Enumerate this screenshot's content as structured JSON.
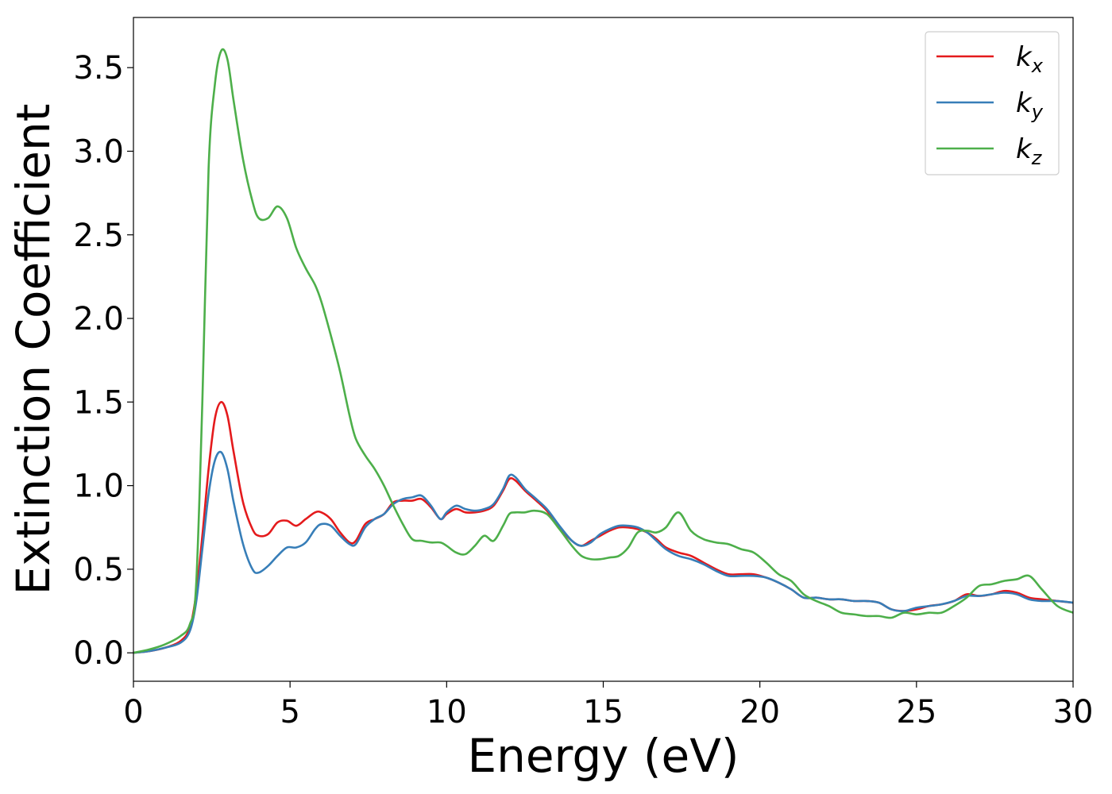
{
  "chart_data": {
    "type": "line",
    "xlabel": "Energy (eV)",
    "ylabel": "Extinction Coefficient",
    "xlim": [
      0,
      30
    ],
    "ylim": [
      -0.17,
      3.8
    ],
    "xticks": [
      0,
      5,
      10,
      15,
      20,
      25,
      30
    ],
    "xtick_labels": [
      "0",
      "5",
      "10",
      "15",
      "20",
      "25",
      "30"
    ],
    "yticks": [
      0.0,
      0.5,
      1.0,
      1.5,
      2.0,
      2.5,
      3.0,
      3.5
    ],
    "ytick_labels": [
      "0.0",
      "0.5",
      "1.0",
      "1.5",
      "2.0",
      "2.5",
      "3.0",
      "3.5"
    ],
    "grid": false,
    "legend_position": "top-right",
    "series": [
      {
        "name": "k_x",
        "legend_base": "k",
        "legend_sub": "x",
        "color": "#e41a1c",
        "x": [
          0,
          0.5,
          1.0,
          1.5,
          1.8,
          2.0,
          2.2,
          2.4,
          2.6,
          2.8,
          3.0,
          3.2,
          3.5,
          3.8,
          4.0,
          4.3,
          4.6,
          4.9,
          5.2,
          5.5,
          5.8,
          6.0,
          6.3,
          6.6,
          6.9,
          7.1,
          7.4,
          7.7,
          8.0,
          8.3,
          8.6,
          8.9,
          9.2,
          9.5,
          9.8,
          10.0,
          10.3,
          10.6,
          10.9,
          11.2,
          11.5,
          11.8,
          12.0,
          12.2,
          12.5,
          12.8,
          13.2,
          13.6,
          14.0,
          14.3,
          14.6,
          14.9,
          15.2,
          15.5,
          15.8,
          16.1,
          16.4,
          16.7,
          17.0,
          17.4,
          17.8,
          18.2,
          18.6,
          19.0,
          19.4,
          19.8,
          20.2,
          20.6,
          21.0,
          21.4,
          21.8,
          22.2,
          22.6,
          23.0,
          23.4,
          23.8,
          24.2,
          24.6,
          25.0,
          25.4,
          25.8,
          26.2,
          26.6,
          27.0,
          27.4,
          27.8,
          28.2,
          28.6,
          29.0,
          29.5,
          30.0
        ],
        "y": [
          0.0,
          0.01,
          0.03,
          0.07,
          0.15,
          0.35,
          0.7,
          1.1,
          1.4,
          1.5,
          1.42,
          1.2,
          0.9,
          0.74,
          0.7,
          0.71,
          0.78,
          0.79,
          0.76,
          0.8,
          0.84,
          0.84,
          0.8,
          0.72,
          0.66,
          0.67,
          0.77,
          0.8,
          0.83,
          0.9,
          0.91,
          0.91,
          0.92,
          0.87,
          0.8,
          0.83,
          0.86,
          0.84,
          0.84,
          0.85,
          0.88,
          0.97,
          1.04,
          1.03,
          0.97,
          0.92,
          0.85,
          0.75,
          0.67,
          0.64,
          0.67,
          0.7,
          0.73,
          0.75,
          0.75,
          0.74,
          0.72,
          0.68,
          0.63,
          0.6,
          0.58,
          0.54,
          0.5,
          0.47,
          0.47,
          0.47,
          0.45,
          0.42,
          0.38,
          0.33,
          0.33,
          0.32,
          0.32,
          0.31,
          0.31,
          0.3,
          0.26,
          0.25,
          0.26,
          0.28,
          0.29,
          0.31,
          0.35,
          0.34,
          0.35,
          0.37,
          0.36,
          0.33,
          0.32,
          0.31,
          0.3
        ]
      },
      {
        "name": "k_y",
        "legend_base": "k",
        "legend_sub": "y",
        "color": "#377eb8",
        "x": [
          0,
          0.5,
          1.0,
          1.5,
          1.8,
          2.0,
          2.2,
          2.4,
          2.6,
          2.8,
          3.0,
          3.2,
          3.5,
          3.8,
          4.0,
          4.3,
          4.6,
          4.9,
          5.2,
          5.5,
          5.8,
          6.0,
          6.3,
          6.6,
          6.9,
          7.1,
          7.4,
          7.7,
          8.0,
          8.3,
          8.6,
          8.9,
          9.2,
          9.5,
          9.8,
          10.0,
          10.3,
          10.6,
          10.9,
          11.2,
          11.5,
          11.8,
          12.0,
          12.2,
          12.5,
          12.8,
          13.2,
          13.6,
          14.0,
          14.3,
          14.6,
          14.9,
          15.2,
          15.5,
          15.8,
          16.1,
          16.4,
          16.7,
          17.0,
          17.4,
          17.8,
          18.2,
          18.6,
          19.0,
          19.4,
          19.8,
          20.2,
          20.6,
          21.0,
          21.4,
          21.8,
          22.2,
          22.6,
          23.0,
          23.4,
          23.8,
          24.2,
          24.6,
          25.0,
          25.4,
          25.8,
          26.2,
          26.6,
          27.0,
          27.4,
          27.8,
          28.2,
          28.6,
          29.0,
          29.5,
          30.0
        ],
        "y": [
          0.0,
          0.01,
          0.03,
          0.06,
          0.13,
          0.3,
          0.62,
          0.95,
          1.15,
          1.2,
          1.1,
          0.9,
          0.65,
          0.5,
          0.48,
          0.52,
          0.58,
          0.63,
          0.63,
          0.66,
          0.74,
          0.77,
          0.76,
          0.7,
          0.65,
          0.65,
          0.75,
          0.8,
          0.83,
          0.89,
          0.92,
          0.93,
          0.94,
          0.88,
          0.8,
          0.84,
          0.88,
          0.86,
          0.85,
          0.86,
          0.89,
          0.98,
          1.06,
          1.05,
          0.98,
          0.93,
          0.86,
          0.76,
          0.67,
          0.64,
          0.66,
          0.71,
          0.74,
          0.76,
          0.76,
          0.75,
          0.72,
          0.67,
          0.62,
          0.58,
          0.56,
          0.53,
          0.49,
          0.46,
          0.46,
          0.46,
          0.45,
          0.42,
          0.38,
          0.33,
          0.33,
          0.32,
          0.32,
          0.31,
          0.31,
          0.3,
          0.26,
          0.25,
          0.27,
          0.28,
          0.29,
          0.31,
          0.34,
          0.34,
          0.35,
          0.36,
          0.35,
          0.32,
          0.31,
          0.31,
          0.3
        ]
      },
      {
        "name": "k_z",
        "legend_base": "k",
        "legend_sub": "z",
        "color": "#4daf4a",
        "x": [
          0,
          0.5,
          1.0,
          1.5,
          1.8,
          2.0,
          2.2,
          2.4,
          2.6,
          2.8,
          3.0,
          3.2,
          3.5,
          3.8,
          4.0,
          4.3,
          4.6,
          4.9,
          5.2,
          5.5,
          5.8,
          6.0,
          6.3,
          6.6,
          6.9,
          7.1,
          7.4,
          7.7,
          8.0,
          8.3,
          8.6,
          8.9,
          9.2,
          9.5,
          9.8,
          10.0,
          10.3,
          10.6,
          10.9,
          11.2,
          11.5,
          11.8,
          12.0,
          12.2,
          12.5,
          12.8,
          13.2,
          13.6,
          14.0,
          14.3,
          14.6,
          14.9,
          15.2,
          15.5,
          15.8,
          16.1,
          16.4,
          16.7,
          17.0,
          17.4,
          17.8,
          18.2,
          18.6,
          19.0,
          19.4,
          19.8,
          20.2,
          20.6,
          21.0,
          21.4,
          21.8,
          22.2,
          22.6,
          23.0,
          23.4,
          23.8,
          24.2,
          24.6,
          25.0,
          25.4,
          25.8,
          26.2,
          26.6,
          27.0,
          27.4,
          27.8,
          28.2,
          28.6,
          29.0,
          29.5,
          30.0
        ],
        "y": [
          0.0,
          0.02,
          0.05,
          0.1,
          0.17,
          0.4,
          1.5,
          2.9,
          3.4,
          3.6,
          3.55,
          3.3,
          2.95,
          2.7,
          2.6,
          2.6,
          2.67,
          2.6,
          2.42,
          2.3,
          2.2,
          2.1,
          1.9,
          1.68,
          1.42,
          1.28,
          1.18,
          1.1,
          1.0,
          0.88,
          0.77,
          0.68,
          0.67,
          0.66,
          0.66,
          0.64,
          0.6,
          0.59,
          0.64,
          0.7,
          0.67,
          0.76,
          0.83,
          0.84,
          0.84,
          0.85,
          0.83,
          0.74,
          0.64,
          0.58,
          0.56,
          0.56,
          0.57,
          0.58,
          0.63,
          0.72,
          0.73,
          0.72,
          0.75,
          0.84,
          0.73,
          0.68,
          0.66,
          0.65,
          0.62,
          0.6,
          0.54,
          0.47,
          0.43,
          0.35,
          0.31,
          0.28,
          0.24,
          0.23,
          0.22,
          0.22,
          0.21,
          0.24,
          0.23,
          0.24,
          0.24,
          0.28,
          0.33,
          0.4,
          0.41,
          0.43,
          0.44,
          0.46,
          0.38,
          0.28,
          0.24
        ]
      }
    ]
  }
}
